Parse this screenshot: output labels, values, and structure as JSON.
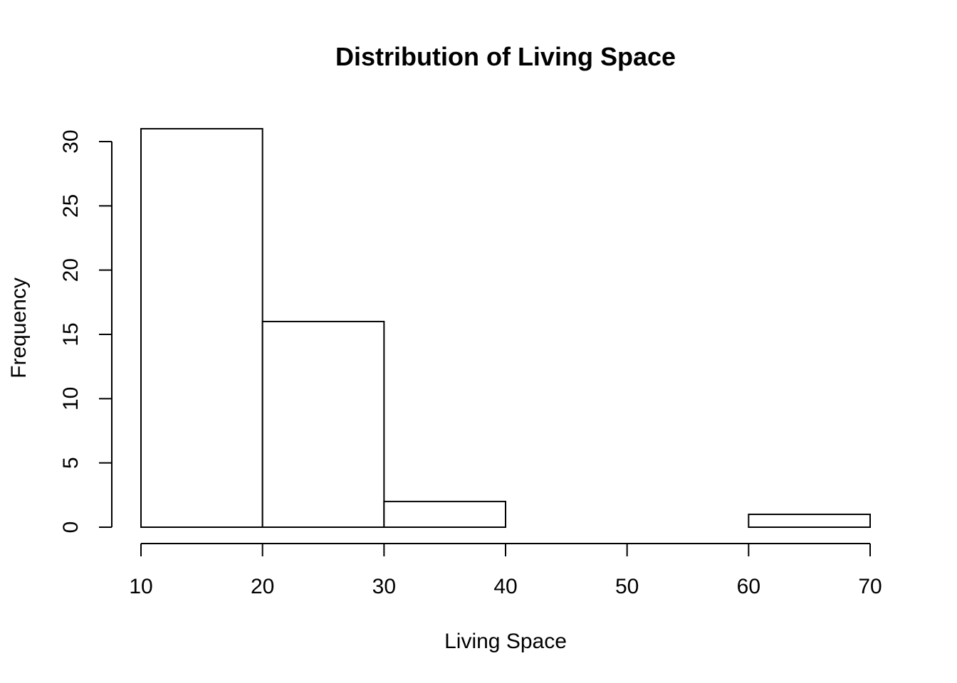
{
  "chart_data": {
    "type": "bar",
    "title": "Distribution of Living Space",
    "xlabel": "Living Space",
    "ylabel": "Frequency",
    "bins": [
      {
        "from": 10,
        "to": 20,
        "count": 31
      },
      {
        "from": 20,
        "to": 30,
        "count": 16
      },
      {
        "from": 30,
        "to": 40,
        "count": 2
      },
      {
        "from": 40,
        "to": 50,
        "count": 0
      },
      {
        "from": 50,
        "to": 60,
        "count": 0
      },
      {
        "from": 60,
        "to": 70,
        "count": 1
      }
    ],
    "x_ticks": [
      10,
      20,
      30,
      40,
      50,
      60,
      70
    ],
    "y_ticks": [
      0,
      5,
      10,
      15,
      20,
      25,
      30
    ],
    "xlim": [
      10,
      70
    ],
    "ylim": [
      0,
      31
    ],
    "grid": false,
    "colors": {
      "bar_fill": "#ffffff",
      "bar_stroke": "#000000"
    }
  }
}
